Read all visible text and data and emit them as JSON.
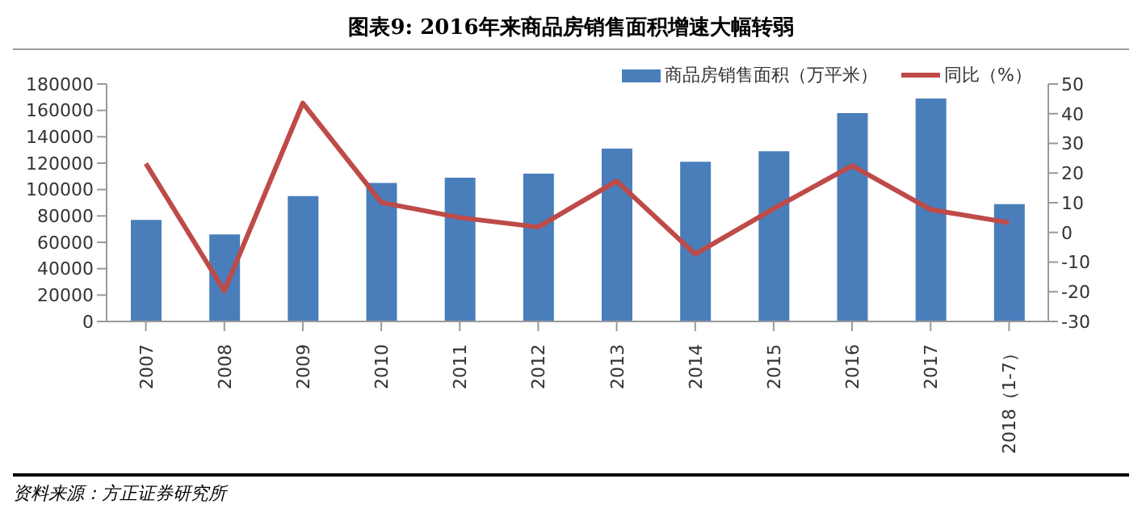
{
  "chart_data": {
    "type": "bar",
    "title": "图表9:   2016年来商品房销售面积增速大幅转弱",
    "categories": [
      "2007",
      "2008",
      "2009",
      "2010",
      "2011",
      "2012",
      "2013",
      "2014",
      "2015",
      "2016",
      "2017",
      "2018（1-7）"
    ],
    "series": [
      {
        "name": "商品房销售面积（万平米）",
        "color": "#4a7ebb",
        "values": [
          77000,
          66000,
          95000,
          105000,
          109000,
          112000,
          131000,
          121000,
          129000,
          158000,
          169000,
          89000
        ]
      },
      {
        "name": "同比（%）",
        "type": "line",
        "axis": "y2",
        "color": "#be4b48",
        "values": [
          23.2,
          -19.7,
          43.6,
          10.1,
          5,
          1.8,
          17.3,
          -7.3,
          8,
          22.5,
          7.7,
          3.3
        ]
      }
    ],
    "ylim": [
      0,
      180000
    ],
    "yticks": [
      0,
      20000,
      40000,
      60000,
      80000,
      100000,
      120000,
      140000,
      160000,
      180000
    ],
    "y2lim": [
      -30,
      50
    ],
    "y2ticks": [
      -30,
      -20,
      -10,
      0,
      10,
      20,
      30,
      40,
      50
    ],
    "legend": "top right",
    "grid": false,
    "marker": "none",
    "annotations": [
      "资料来源：方正证券研究所"
    ]
  }
}
